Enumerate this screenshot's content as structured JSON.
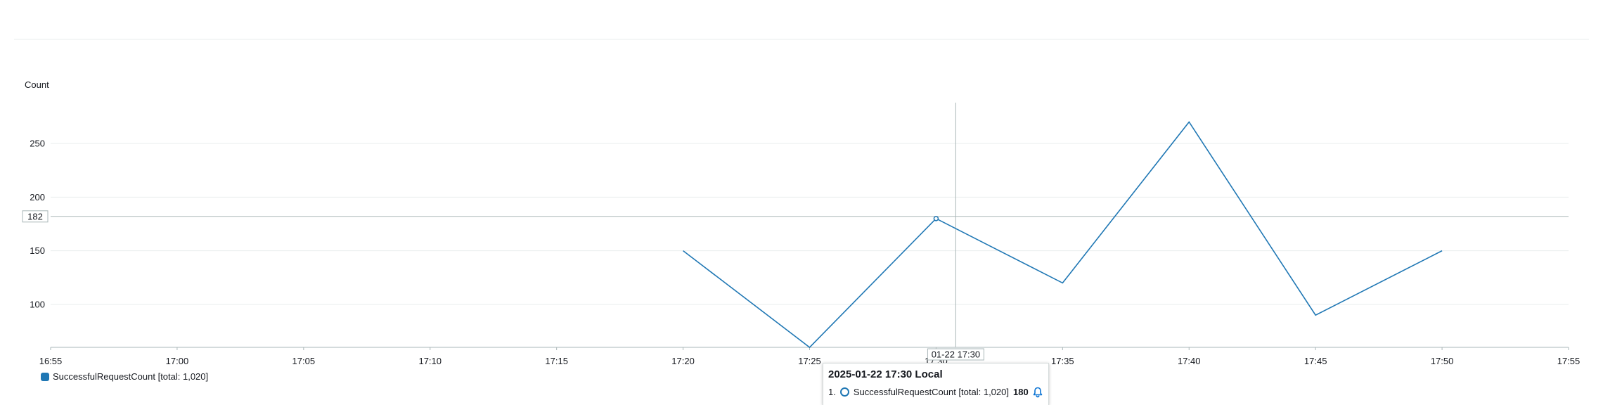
{
  "chart_data": {
    "type": "line",
    "ylabel": "Count",
    "x": [
      "17:20",
      "17:25",
      "17:30",
      "17:35",
      "17:40",
      "17:45",
      "17:50"
    ],
    "x_ticks": [
      "16:55",
      "17:00",
      "17:05",
      "17:10",
      "17:15",
      "17:20",
      "17:25",
      "17:30",
      "17:35",
      "17:40",
      "17:45",
      "17:50",
      "17:55"
    ],
    "y_ticks": [
      100,
      150,
      200,
      250
    ],
    "ylim": [
      60,
      288
    ],
    "grid": true,
    "series": [
      {
        "name": "SuccessfulRequestCount [total: 1,020]",
        "color": "#1f77b4",
        "values": [
          150,
          60,
          180,
          120,
          270,
          90,
          150
        ]
      }
    ],
    "legend_position": "bottom-left"
  },
  "crosshair": {
    "y_label": "182",
    "y_value": 182,
    "x_label": "01-22 17:30",
    "x_value": "17:30"
  },
  "tooltip": {
    "title": "2025-01-22 17:30 Local",
    "index": "1.",
    "series_name": "SuccessfulRequestCount [total: 1,020]",
    "value": "180",
    "icon": "bell-icon"
  },
  "legend": {
    "label": "SuccessfulRequestCount [total: 1,020]",
    "color": "#1f77b4"
  }
}
